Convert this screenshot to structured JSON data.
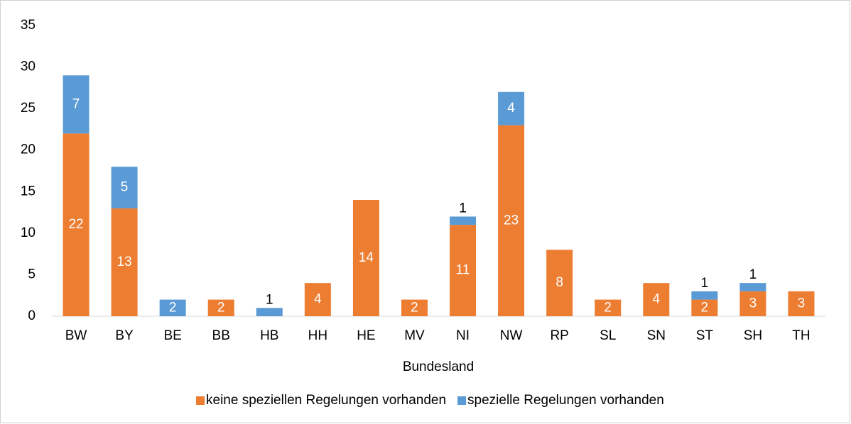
{
  "chart_data": {
    "type": "stacked_bar",
    "x_label": "Bundesland",
    "categories": [
      "BW",
      "BY",
      "BE",
      "BB",
      "HB",
      "HH",
      "HE",
      "MV",
      "NI",
      "NW",
      "RP",
      "SL",
      "SN",
      "ST",
      "SH",
      "TH"
    ],
    "series": [
      {
        "name": "keine speziellen Regelungen vorhanden",
        "color": "#ed7d31",
        "values": [
          22,
          13,
          0,
          2,
          0,
          4,
          14,
          2,
          11,
          23,
          8,
          2,
          4,
          2,
          3,
          3
        ]
      },
      {
        "name": "spezielle Regelungen vorhanden",
        "color": "#5b9bd5",
        "values": [
          7,
          5,
          2,
          0,
          1,
          0,
          0,
          0,
          1,
          4,
          0,
          0,
          0,
          1,
          1,
          0
        ]
      }
    ],
    "ylim": [
      0,
      35
    ],
    "yticks": [
      0,
      5,
      10,
      15,
      20,
      25,
      30,
      35
    ],
    "grid": false,
    "legend": "bottom"
  }
}
